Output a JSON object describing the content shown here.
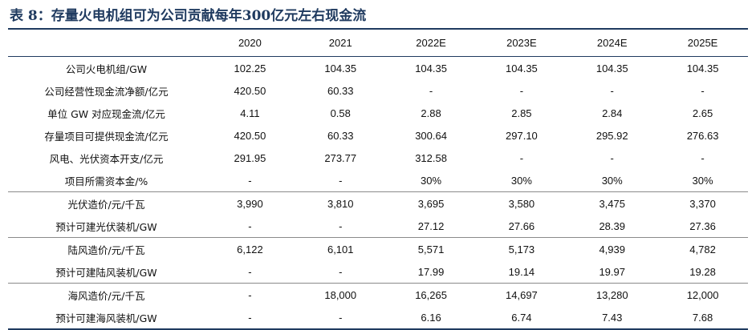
{
  "title": "表 8：存量火电机组可为公司贡献每年300亿元左右现金流",
  "columns": [
    "2020",
    "2021",
    "2022E",
    "2023E",
    "2024E",
    "2025E"
  ],
  "rows": [
    {
      "label": "公司火电机组/GW",
      "values": [
        "102.25",
        "104.35",
        "104.35",
        "104.35",
        "104.35",
        "104.35"
      ]
    },
    {
      "label": "公司经营性现金流净额/亿元",
      "values": [
        "420.50",
        "60.33",
        "-",
        "-",
        "-",
        "-"
      ]
    },
    {
      "label": "单位 GW 对应现金流/亿元",
      "values": [
        "4.11",
        "0.58",
        "2.88",
        "2.85",
        "2.84",
        "2.65"
      ]
    },
    {
      "label": "存量项目可提供现金流/亿元",
      "values": [
        "420.50",
        "60.33",
        "300.64",
        "297.10",
        "295.92",
        "276.63"
      ]
    },
    {
      "label": "风电、光伏资本开支/亿元",
      "values": [
        "291.95",
        "273.77",
        "312.58",
        "-",
        "-",
        "-"
      ]
    },
    {
      "label": "项目所需资本金/%",
      "values": [
        "-",
        "-",
        "30%",
        "30%",
        "30%",
        "30%"
      ]
    },
    {
      "label": "光伏造价/元/千瓦",
      "values": [
        "3,990",
        "3,810",
        "3,695",
        "3,580",
        "3,475",
        "3,370"
      ]
    },
    {
      "label": "预计可建光伏装机/GW",
      "values": [
        "-",
        "-",
        "27.12",
        "27.66",
        "28.39",
        "27.36"
      ]
    },
    {
      "label": "陆风造价/元/千瓦",
      "values": [
        "6,122",
        "6,101",
        "5,571",
        "5,173",
        "4,939",
        "4,782"
      ]
    },
    {
      "label": "预计可建陆风装机/GW",
      "values": [
        "-",
        "-",
        "17.99",
        "19.14",
        "19.97",
        "19.28"
      ]
    },
    {
      "label": "海风造价/元/千瓦",
      "values": [
        "-",
        "18,000",
        "16,265",
        "14,697",
        "13,280",
        "12,000"
      ]
    },
    {
      "label": "预计可建海风装机/GW",
      "values": [
        "-",
        "-",
        "6.16",
        "6.74",
        "7.43",
        "7.68"
      ]
    }
  ]
}
